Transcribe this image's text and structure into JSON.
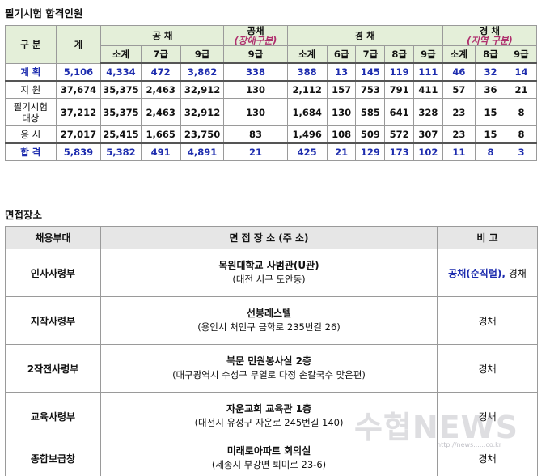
{
  "section1_title": "필기시험 합격인원",
  "section2_title": "면접장소",
  "t1": {
    "h_gubun": "구 분",
    "h_total": "계",
    "h_gongchae": "공 채",
    "h_disabled_1": "공채",
    "h_disabled_2": "(장애구분)",
    "h_gyeongchae": "경 채",
    "h_regional_1": "경 채",
    "h_regional_2": "(지역 구분)",
    "sub": [
      "소계",
      "7급",
      "9급",
      "9급",
      "소계",
      "6급",
      "7급",
      "8급",
      "9급",
      "소계",
      "8급",
      "9급"
    ],
    "rows": [
      {
        "label": "계 획",
        "blue": true,
        "values": [
          "5,106",
          "4,334",
          "472",
          "3,862",
          "338",
          "388",
          "13",
          "145",
          "119",
          "111",
          "46",
          "32",
          "14"
        ]
      },
      {
        "label": "지 원",
        "blue": false,
        "values": [
          "37,674",
          "35,375",
          "2,463",
          "32,912",
          "130",
          "2,112",
          "157",
          "753",
          "791",
          "411",
          "57",
          "36",
          "21"
        ]
      },
      {
        "label": "필기시험\n대상",
        "blue": false,
        "values": [
          "37,212",
          "35,375",
          "2,463",
          "32,912",
          "130",
          "1,684",
          "130",
          "585",
          "641",
          "328",
          "23",
          "15",
          "8"
        ]
      },
      {
        "label": "응 시",
        "blue": false,
        "values": [
          "27,017",
          "25,415",
          "1,665",
          "23,750",
          "83",
          "1,496",
          "108",
          "509",
          "572",
          "307",
          "23",
          "15",
          "8"
        ]
      },
      {
        "label": "합 격",
        "blue": true,
        "values": [
          "5,839",
          "5,382",
          "491",
          "4,891",
          "21",
          "425",
          "21",
          "129",
          "173",
          "102",
          "11",
          "8",
          "3"
        ]
      }
    ]
  },
  "t2": {
    "h_dept": "채용부대",
    "h_loc": "면 접 장 소 (주 소)",
    "h_note": "비 고",
    "rows": [
      {
        "dept": "인사사령부",
        "loc": "목원대학교 사범관(U관)",
        "addr": "(대전 서구 도안동)",
        "note_link": "공채(순직렬),",
        "note": " 경채"
      },
      {
        "dept": "지작사령부",
        "loc": "선봉레스텔",
        "addr": "(용인시 처인구 금학로 235번길 26)",
        "note_link": "",
        "note": "경채"
      },
      {
        "dept": "2작전사령부",
        "loc": "북문 민원봉사실 2층",
        "addr": "(대구광역시 수성구 무열로 다정 손칼국수 맞은편)",
        "note_link": "",
        "note": "경채"
      },
      {
        "dept": "교육사령부",
        "loc": "자운교회 교육관 1층",
        "addr": "(대전시 유성구 자운로 245번길 140)",
        "note_link": "",
        "note": "경채"
      },
      {
        "dept": "종합보급창",
        "loc": "미래로아파트 회의실",
        "addr": "(세종시 부강면 퇴미로 23-6)",
        "note_link": "",
        "note": "경채"
      }
    ]
  },
  "watermark": "수협NEWS",
  "watermark_url": "http://news......co.kr"
}
